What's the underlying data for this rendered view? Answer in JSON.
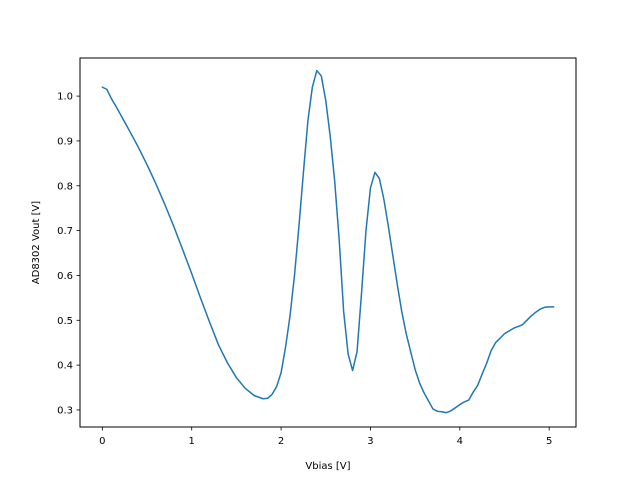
{
  "chart_data": {
    "type": "line",
    "title": "",
    "xlabel": "Vbias [V]",
    "ylabel": "AD8302 Vout [V]",
    "xlim": [
      -0.25,
      5.3
    ],
    "ylim": [
      0.262,
      1.085
    ],
    "xticks": [
      0,
      1,
      2,
      3,
      4,
      5
    ],
    "yticks": [
      0.3,
      0.4,
      0.5,
      0.6,
      0.7,
      0.8,
      0.9,
      1.0
    ],
    "xtick_labels": [
      "0",
      "1",
      "2",
      "3",
      "4",
      "5"
    ],
    "ytick_labels": [
      "0.3",
      "0.4",
      "0.5",
      "0.6",
      "0.7",
      "0.8",
      "0.9",
      "1.0"
    ],
    "grid": false,
    "legend": "none",
    "line_color": "#1f77b4",
    "series": [
      {
        "x": [
          0.0,
          0.05,
          0.1,
          0.15,
          0.2,
          0.3,
          0.4,
          0.5,
          0.6,
          0.7,
          0.8,
          0.9,
          1.0,
          1.1,
          1.2,
          1.3,
          1.4,
          1.5,
          1.6,
          1.7,
          1.8,
          1.85,
          1.9,
          1.95,
          2.0,
          2.05,
          2.1,
          2.15,
          2.2,
          2.25,
          2.3,
          2.35,
          2.4,
          2.45,
          2.5,
          2.55,
          2.6,
          2.65,
          2.7,
          2.75,
          2.8,
          2.85,
          2.9,
          2.95,
          3.0,
          3.05,
          3.1,
          3.15,
          3.2,
          3.25,
          3.3,
          3.35,
          3.4,
          3.45,
          3.5,
          3.55,
          3.6,
          3.65,
          3.7,
          3.75,
          3.8,
          3.85,
          3.9,
          3.95,
          4.0,
          4.05,
          4.1,
          4.15,
          4.2,
          4.25,
          4.3,
          4.35,
          4.4,
          4.5,
          4.6,
          4.7,
          4.75,
          4.8,
          4.85,
          4.9,
          4.95,
          5.0,
          5.05
        ],
        "y": [
          1.02,
          1.015,
          0.995,
          0.978,
          0.96,
          0.924,
          0.887,
          0.847,
          0.804,
          0.758,
          0.709,
          0.657,
          0.604,
          0.549,
          0.496,
          0.445,
          0.405,
          0.372,
          0.348,
          0.332,
          0.325,
          0.326,
          0.335,
          0.352,
          0.383,
          0.44,
          0.51,
          0.6,
          0.71,
          0.83,
          0.945,
          1.02,
          1.057,
          1.045,
          0.99,
          0.91,
          0.81,
          0.68,
          0.52,
          0.425,
          0.388,
          0.43,
          0.56,
          0.7,
          0.795,
          0.83,
          0.816,
          0.77,
          0.71,
          0.645,
          0.58,
          0.52,
          0.47,
          0.43,
          0.39,
          0.36,
          0.338,
          0.32,
          0.302,
          0.297,
          0.296,
          0.294,
          0.298,
          0.305,
          0.312,
          0.318,
          0.322,
          0.34,
          0.355,
          0.38,
          0.404,
          0.432,
          0.45,
          0.47,
          0.482,
          0.49,
          0.5,
          0.51,
          0.518,
          0.525,
          0.529,
          0.53,
          0.53
        ]
      }
    ]
  }
}
